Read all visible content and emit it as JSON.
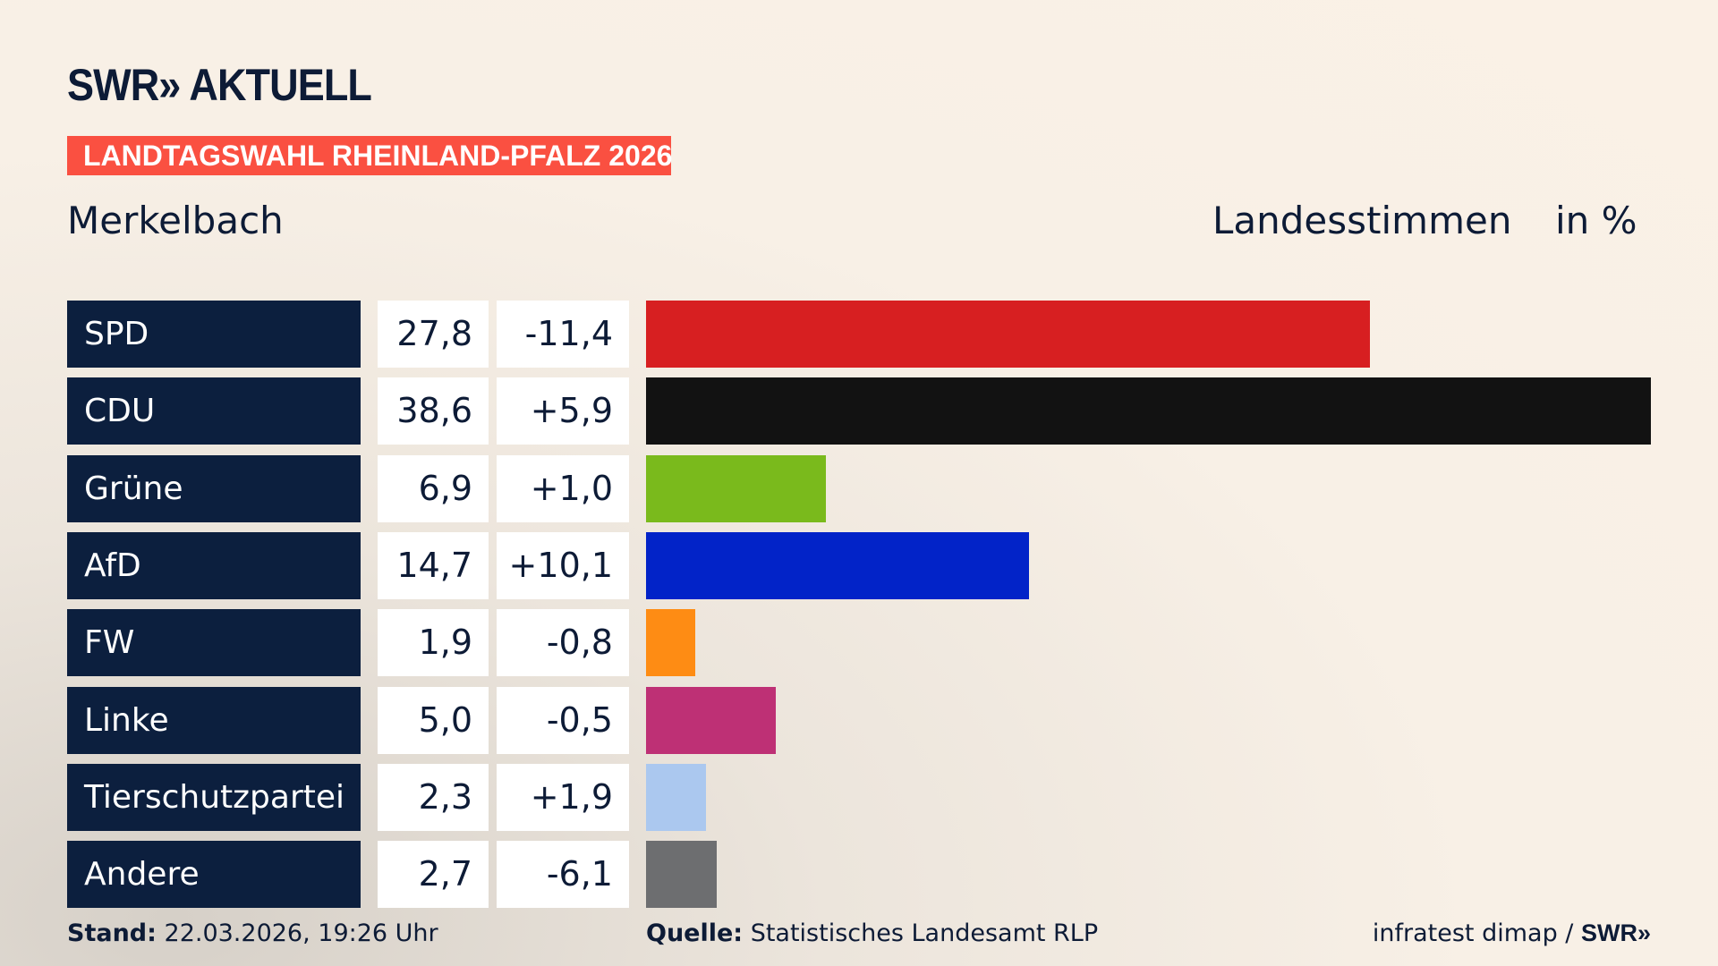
{
  "header": {
    "logo": "SWR» AKTUELL",
    "banner": "LANDTAGSWAHL RHEINLAND-PFALZ 2026",
    "place": "Merkelbach",
    "label": "Landesstimmen",
    "unit": "in %"
  },
  "chart_data": {
    "type": "bar",
    "orientation": "horizontal",
    "unit": "%",
    "categories": [
      "SPD",
      "CDU",
      "Grüne",
      "AfD",
      "FW",
      "Linke",
      "Tierschutzpartei",
      "Andere"
    ],
    "values": [
      27.8,
      38.6,
      6.9,
      14.7,
      1.9,
      5.0,
      2.3,
      2.7
    ],
    "values_label": [
      "27,8",
      "38,6",
      "6,9",
      "14,7",
      "1,9",
      "5,0",
      "2,3",
      "2,7"
    ],
    "diffs": [
      "-11,4",
      "+5,9",
      "+1,0",
      "+10,1",
      "-0,8",
      "-0,5",
      "+1,9",
      "-6,1"
    ],
    "colors": [
      "#d71f21",
      "#121212",
      "#7aba1c",
      "#0223c8",
      "#fe8c14",
      "#be3075",
      "#abc8ef",
      "#6d6e70"
    ]
  },
  "footer": {
    "stand_label": "Stand:",
    "stand": "22.03.2026, 19:26 Uhr",
    "source_label": "Quelle:",
    "source": "Statistisches Landesamt RLP",
    "credit": "infratest dimap / ",
    "credit_logo": "SWR»"
  }
}
